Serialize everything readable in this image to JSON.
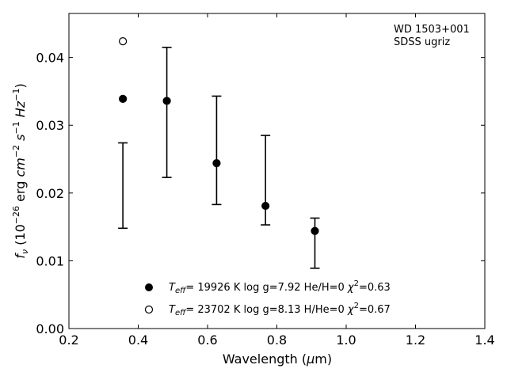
{
  "chart_data": {
    "type": "scatter",
    "title": "",
    "xlabel": "Wavelength (μm)",
    "ylabel": "f_ν (10^-26 erg cm^-2 s^-1 Hz^-1)",
    "xlim": [
      0.2,
      1.4
    ],
    "ylim": [
      0.0,
      0.0465
    ],
    "xticks": [
      0.2,
      0.4,
      0.6,
      0.8,
      1.0,
      1.2,
      1.4
    ],
    "xtick_labels": [
      "0.2",
      "0.4",
      "0.6",
      "0.8",
      "1.0",
      "1.2",
      "1.4"
    ],
    "yticks": [
      0.0,
      0.01,
      0.02,
      0.03,
      0.04
    ],
    "ytick_labels": [
      "0.00",
      "0.01",
      "0.02",
      "0.03",
      "0.04"
    ],
    "grid": false,
    "legend_position": "lower-center",
    "annotation": {
      "object": "WD 1503+001",
      "filters": "SDSS ugriz"
    },
    "observed": {
      "x": [
        0.3557,
        0.4825,
        0.6261,
        0.7672,
        0.9097
      ],
      "y": [
        0.0211,
        0.0319,
        0.0263,
        0.0219,
        0.0126
      ],
      "yerr_low": [
        0.0063,
        0.0096,
        0.008,
        0.0066,
        0.0037
      ],
      "yerr_high": [
        0.0063,
        0.0096,
        0.008,
        0.0066,
        0.0037
      ]
    },
    "series": [
      {
        "marker": "filled-circle",
        "legend_label": "T_eff= 19926 K  log g=7.92  He/H=0  χ²=0.63",
        "x": [
          0.3557,
          0.4825,
          0.6261,
          0.7672,
          0.9097
        ],
        "y": [
          0.0339,
          0.0336,
          0.0244,
          0.0181,
          0.0144
        ]
      },
      {
        "marker": "open-circle",
        "legend_label": "T_eff= 23702 K  log g=8.13  H/He=0  χ²=0.67",
        "x": [
          0.3557
        ],
        "y": [
          0.0424
        ]
      }
    ]
  }
}
